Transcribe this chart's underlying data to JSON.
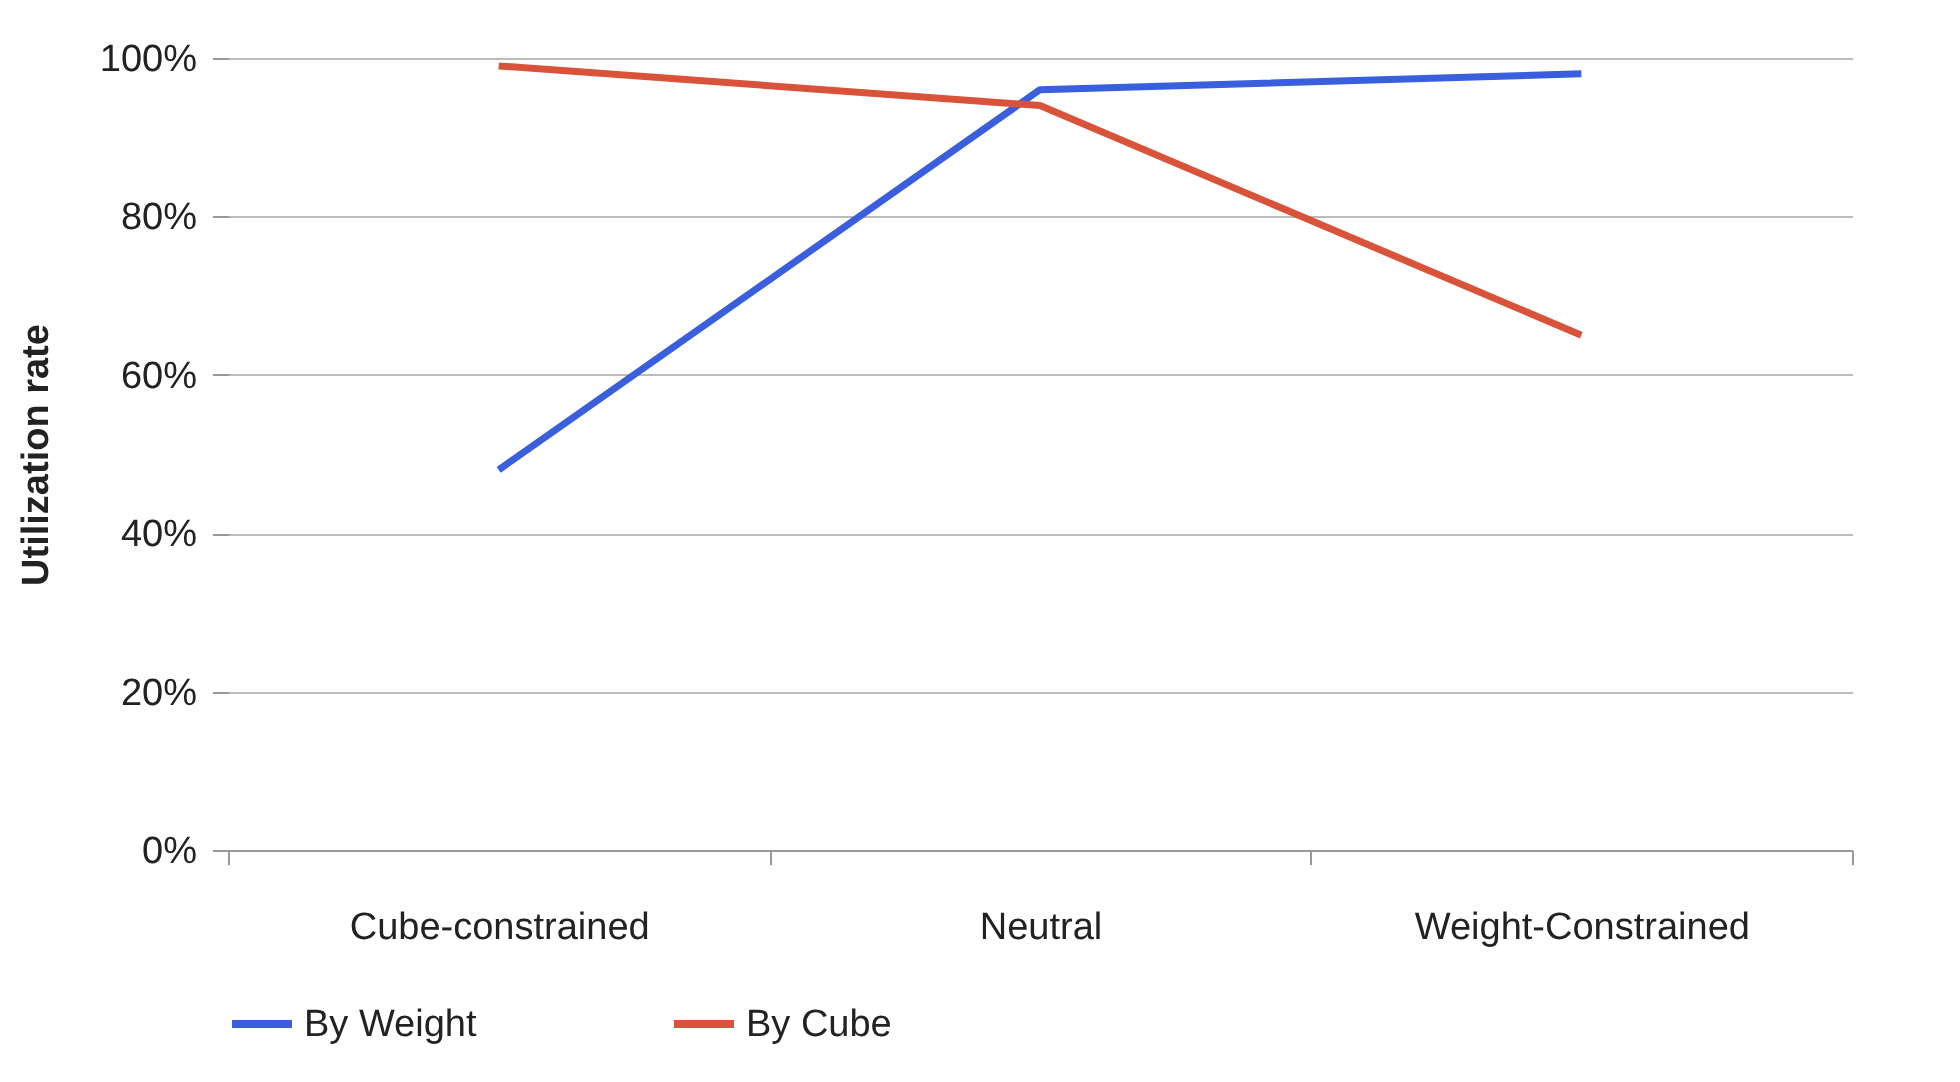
{
  "chart_data": {
    "type": "line",
    "ylabel": "Utilization rate",
    "categories": [
      "Cube-constrained",
      "Neutral",
      "Weight-Constrained"
    ],
    "series": [
      {
        "name": "By Weight",
        "color": "#3a5fdc",
        "values": [
          48,
          96,
          98
        ]
      },
      {
        "name": "By Cube",
        "color": "#d9533a",
        "values": [
          99,
          94,
          65
        ]
      }
    ],
    "ylim": [
      0,
      100
    ],
    "yticks": [
      {
        "value": 0,
        "label": "0%"
      },
      {
        "value": 20,
        "label": "20%"
      },
      {
        "value": 40,
        "label": "40%"
      },
      {
        "value": 60,
        "label": "60%"
      },
      {
        "value": 80,
        "label": "80%"
      },
      {
        "value": 100,
        "label": "100%"
      }
    ],
    "grid": "y",
    "legend": "bottom",
    "marker": "none",
    "line_style": "solid"
  }
}
